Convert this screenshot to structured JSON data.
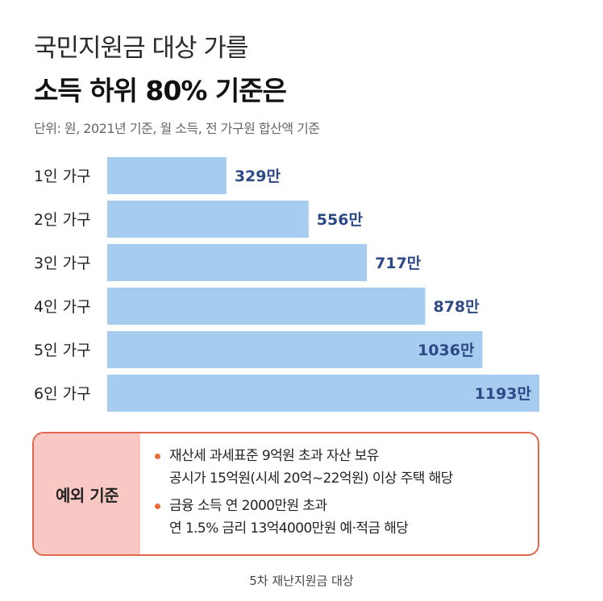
{
  "header": {
    "title_line1": "국민지원금 대상 가를",
    "title_line2": "소득 하위 80% 기준은",
    "unit_note": "단위: 원, 2021년 기준, 월 소득, 전 가구원 합산액 기준"
  },
  "chart_data": {
    "type": "bar",
    "orientation": "horizontal",
    "categories": [
      "1인 가구",
      "2인 가구",
      "3인 가구",
      "4인 가구",
      "5인 가구",
      "6인 가구"
    ],
    "values": [
      329,
      556,
      717,
      878,
      1036,
      1193
    ],
    "value_labels": [
      "329만",
      "556만",
      "717만",
      "878만",
      "1036만",
      "1193만"
    ],
    "bar_color": "#a6cdef",
    "value_label_color": "#2e4a86",
    "xlim": [
      0,
      1193
    ],
    "grid": false,
    "legend": "none"
  },
  "exception_box": {
    "label": "예외 기준",
    "border_color": "#e0684f",
    "label_bg_color": "#f8c9c4",
    "bullet_color": "#e86c3c",
    "bullets": [
      {
        "line1": "재산세 과세표준 9억원 초과 자산 보유",
        "line2": "공시가 15억원(시세 20억~22억원) 이상 주택 해당"
      },
      {
        "line1": "금융 소득 연 2000만원 초과",
        "line2": "연 1.5% 금리 13억4000만원 예·적금 해당"
      }
    ]
  },
  "caption": "5차 재난지원금 대상"
}
